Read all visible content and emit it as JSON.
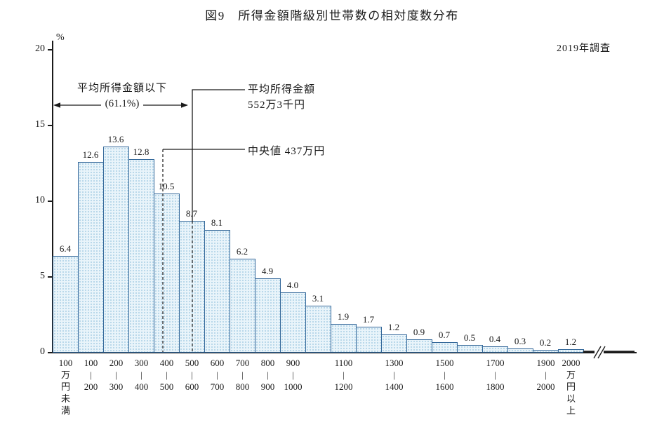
{
  "title": "図9　所得金額階級別世帯数の相対度数分布",
  "survey_note": "2019年調査",
  "y_axis": {
    "unit_label": "%",
    "ticks": [
      0,
      5,
      10,
      15,
      20
    ],
    "max": 20
  },
  "annotations": {
    "below_mean_title": "平均所得金額以下",
    "below_mean_pct": "(61.1%)",
    "mean_title": "平均所得金額",
    "mean_value_label": "552万3千円",
    "median_label": "中央値  437万円"
  },
  "chart_data": {
    "type": "bar",
    "title": "図9 所得金額階級別世帯数の相対度数分布",
    "ylabel": "%",
    "ylim": [
      0,
      20
    ],
    "grid": false,
    "categories": [
      "100万円未満",
      "100-200",
      "200-300",
      "300-400",
      "400-500",
      "500-600",
      "600-700",
      "700-800",
      "800-900",
      "900-1000",
      "1000-1100",
      "1100-1200",
      "1200-1300",
      "1300-1400",
      "1400-1500",
      "1500-1600",
      "1600-1700",
      "1700-1800",
      "1800-1900",
      "1900-2000",
      "2000万円以上"
    ],
    "values": [
      6.4,
      12.6,
      13.6,
      12.8,
      10.5,
      8.7,
      8.1,
      6.2,
      4.9,
      4.0,
      3.1,
      1.9,
      1.7,
      1.2,
      0.9,
      0.7,
      0.5,
      0.4,
      0.3,
      0.2,
      1.2
    ],
    "x_tick_labels": [
      [
        "100",
        "万",
        "円",
        "未",
        "満"
      ],
      [
        "100",
        "|",
        "200"
      ],
      [
        "200",
        "|",
        "300"
      ],
      [
        "300",
        "|",
        "400"
      ],
      [
        "400",
        "|",
        "500"
      ],
      [
        "500",
        "|",
        "600"
      ],
      [
        "600",
        "|",
        "700"
      ],
      [
        "700",
        "|",
        "800"
      ],
      [
        "800",
        "|",
        "900"
      ],
      [
        "900",
        "|",
        "1000"
      ],
      [],
      [
        "1100",
        "|",
        "1200"
      ],
      [],
      [
        "1300",
        "|",
        "1400"
      ],
      [],
      [
        "1500",
        "|",
        "1600"
      ],
      [],
      [
        "1700",
        "|",
        "1800"
      ],
      [],
      [
        "1900",
        "|",
        "2000"
      ],
      [
        "2000",
        "万",
        "円",
        "以",
        "上"
      ]
    ],
    "mean": 552.3,
    "median": 437,
    "mean_annotation": "平均所得金額 552万3千円",
    "median_annotation": "中央値 437万円",
    "below_mean_share_pct": 61.1,
    "survey_year_note": "2019年調査",
    "axis_break_after_last_bar": true,
    "colors": {
      "bar_fill": "#e9f4fa",
      "bar_dots": "#a9cfe4",
      "bar_border": "#34689a",
      "ink": "#1a1a1a"
    }
  }
}
